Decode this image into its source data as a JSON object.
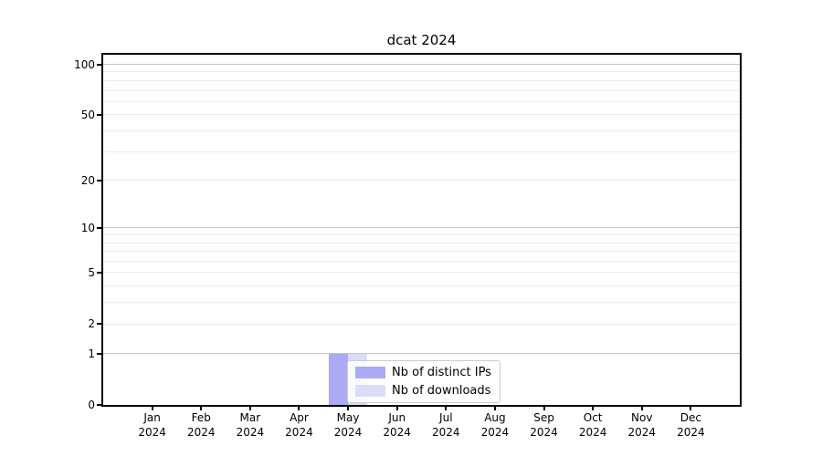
{
  "chart_data": {
    "type": "bar",
    "title": "dcat 2024",
    "categories": [
      "Jan 2024",
      "Feb 2024",
      "Mar 2024",
      "Apr 2024",
      "May 2024",
      "Jun 2024",
      "Jul 2024",
      "Aug 2024",
      "Sep 2024",
      "Oct 2024",
      "Nov 2024",
      "Dec 2024"
    ],
    "series": [
      {
        "name": "Nb of distinct IPs",
        "color": "#aaaaf5",
        "values": [
          0,
          0,
          0,
          0,
          1,
          0,
          0,
          0,
          0,
          0,
          0,
          0
        ]
      },
      {
        "name": "Nb of downloads",
        "color": "#dcdcf9",
        "values": [
          0,
          0,
          0,
          0,
          1,
          0,
          0,
          0,
          0,
          0,
          0,
          0
        ]
      }
    ],
    "xlabel": "",
    "ylabel": "",
    "yscale": "log1p",
    "ylim": [
      0,
      100
    ],
    "y_tick_values": [
      0,
      1,
      2,
      5,
      10,
      20,
      50,
      100
    ],
    "y_tick_labels": [
      "0",
      "1",
      "2",
      "5",
      "10",
      "20",
      "50",
      "100"
    ],
    "y_major_gridlines": [
      1,
      10,
      100
    ],
    "y_minor_gridlines": [
      2,
      3,
      4,
      5,
      6,
      7,
      8,
      9,
      20,
      30,
      40,
      50,
      60,
      70,
      80,
      90
    ],
    "grid": "on",
    "legend_position": "lower center inside plot",
    "colors": {
      "background": "#ffffff",
      "axis": "#000000",
      "major_grid": "#c6c6c6",
      "minor_grid": "#ececec",
      "legend_border": "#cccccc"
    }
  }
}
